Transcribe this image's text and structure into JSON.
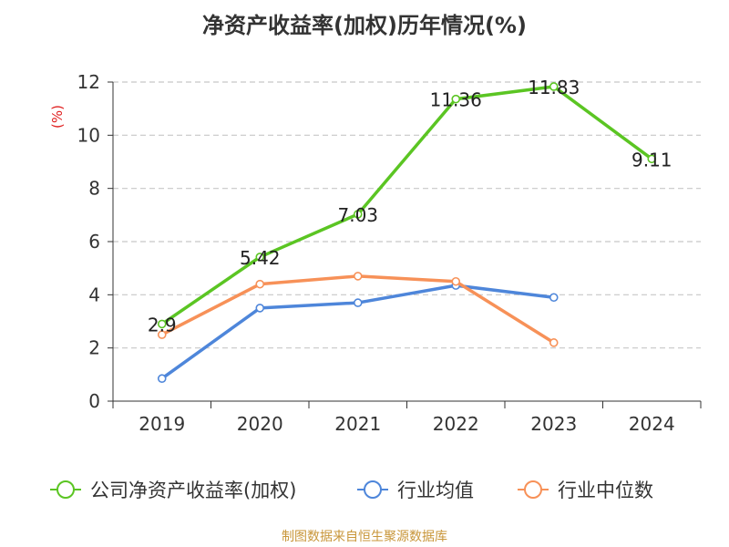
{
  "title": "净资产收益率(加权)历年情况(%)",
  "source": "制图数据来自恒生聚源数据库",
  "chart_data": {
    "type": "line",
    "title": "净资产收益率(加权)历年情况(%)",
    "ylabel": "(%)",
    "xlabel": "",
    "categories": [
      "2019",
      "2020",
      "2021",
      "2022",
      "2023",
      "2024"
    ],
    "ylim": [
      0,
      12
    ],
    "yticks": [
      0,
      2,
      4,
      6,
      8,
      10,
      12
    ],
    "grid": true,
    "legend_position": "bottom",
    "series": [
      {
        "name": "公司净资产收益率(加权)",
        "color": "#5bc523",
        "values": [
          2.9,
          5.42,
          7.03,
          11.36,
          11.83,
          9.11
        ],
        "labels": [
          "2.9",
          "5.42",
          "7.03",
          "11.36",
          "11.83",
          "9.11"
        ]
      },
      {
        "name": "行业均值",
        "color": "#4e86da",
        "values": [
          0.85,
          3.5,
          3.7,
          4.35,
          3.9,
          null
        ]
      },
      {
        "name": "行业中位数",
        "color": "#f79158",
        "values": [
          2.5,
          4.4,
          4.7,
          4.5,
          2.2,
          null
        ]
      }
    ]
  }
}
